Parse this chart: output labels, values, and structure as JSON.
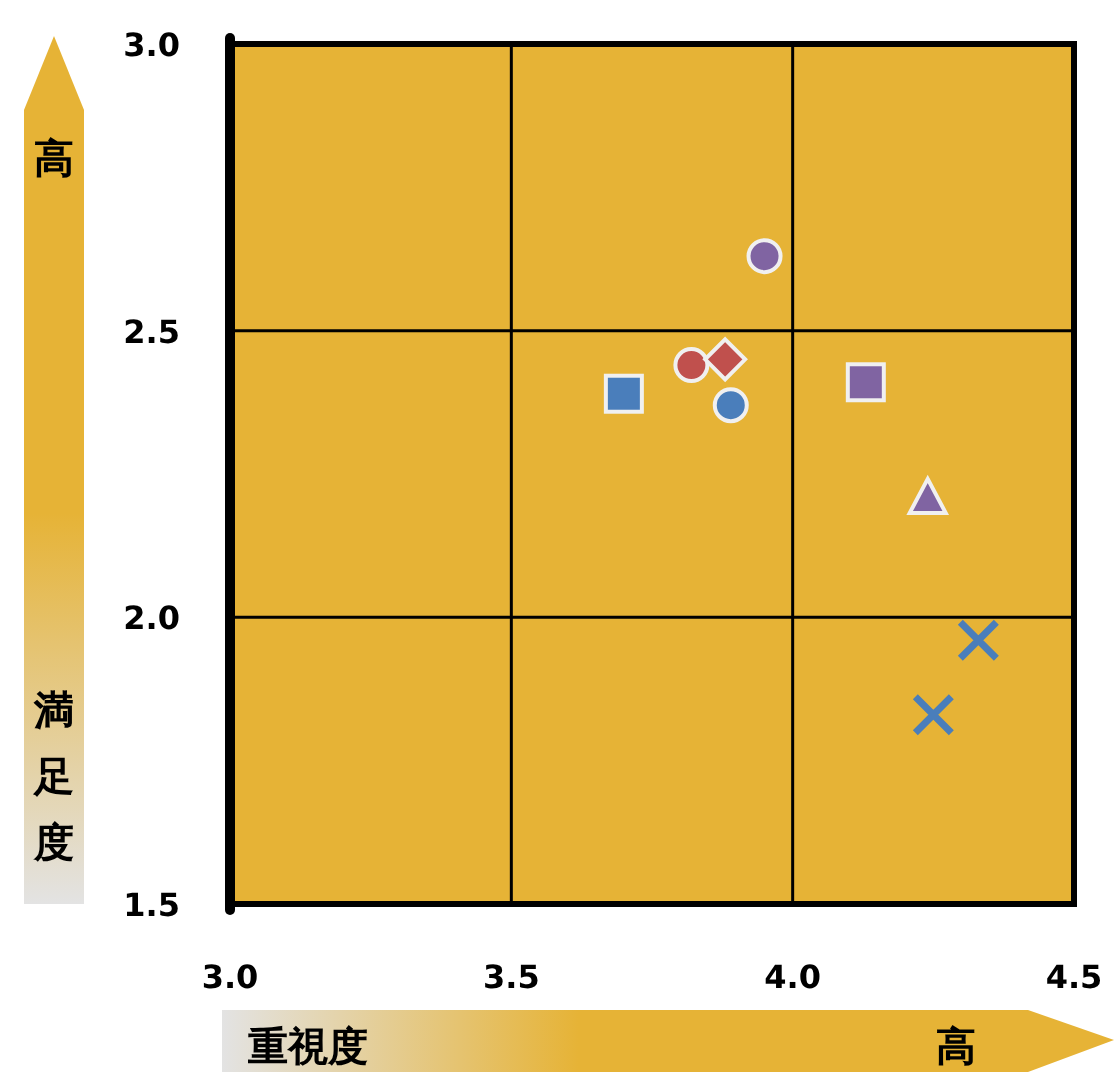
{
  "chart_data": {
    "type": "scatter",
    "xlabel": "重視度",
    "ylabel": "満足度",
    "annotations": [
      "高",
      "高"
    ],
    "xlim": [
      3.0,
      4.5
    ],
    "ylim": [
      1.5,
      3.0
    ],
    "xticks": [
      {
        "value": 3.0,
        "label": "3.0"
      },
      {
        "value": 3.5,
        "label": "3.5"
      },
      {
        "value": 4.0,
        "label": "4.0"
      },
      {
        "value": 4.5,
        "label": "4.5"
      }
    ],
    "yticks": [
      {
        "value": 1.5,
        "label": "1.5"
      },
      {
        "value": 2.0,
        "label": "2.0"
      },
      {
        "value": 2.5,
        "label": "2.5"
      },
      {
        "value": 3.0,
        "label": "3.0"
      }
    ],
    "grid": true,
    "series": [
      {
        "color": "#8064a2",
        "marker": "circle",
        "x": [
          3.95
        ],
        "values": [
          2.63
        ]
      },
      {
        "color": "#c0504d",
        "marker": "circle",
        "x": [
          3.82
        ],
        "values": [
          2.44
        ]
      },
      {
        "color": "#c0504d",
        "marker": "diamond",
        "x": [
          3.88
        ],
        "values": [
          2.45
        ]
      },
      {
        "color": "#4a7ebb",
        "marker": "square",
        "x": [
          3.7
        ],
        "values": [
          2.39
        ]
      },
      {
        "color": "#4a7ebb",
        "marker": "circle",
        "x": [
          3.89
        ],
        "values": [
          2.37
        ]
      },
      {
        "color": "#8064a2",
        "marker": "square",
        "x": [
          4.13
        ],
        "values": [
          2.41
        ]
      },
      {
        "color": "#8064a2",
        "marker": "triangle",
        "x": [
          4.24
        ],
        "values": [
          2.21
        ]
      },
      {
        "color": "#4a7ebb",
        "marker": "cross",
        "x": [
          4.33
        ],
        "values": [
          1.96
        ]
      },
      {
        "color": "#4a7ebb",
        "marker": "cross",
        "x": [
          4.25
        ],
        "values": [
          1.83
        ]
      }
    ]
  }
}
